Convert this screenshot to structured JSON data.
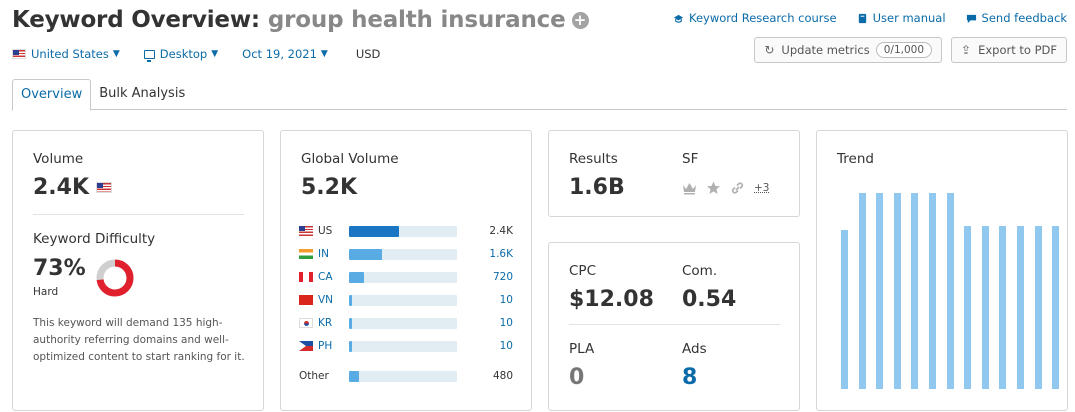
{
  "header": {
    "title": "Keyword Overview:",
    "keyword": "group health insurance",
    "links": [
      "Keyword Research course",
      "User manual",
      "Send feedback"
    ]
  },
  "filters": {
    "country": "United States",
    "device": "Desktop",
    "date": "Oct 19, 2021",
    "currency": "USD"
  },
  "buttons": {
    "update": "Update metrics",
    "update_count": "0/1,000",
    "export": "Export to PDF"
  },
  "tabs": [
    "Overview",
    "Bulk Analysis"
  ],
  "volume": {
    "label": "Volume",
    "value": "2.4K"
  },
  "kd": {
    "label": "Keyword Difficulty",
    "value": "73%",
    "level": "Hard",
    "percent": 73,
    "description": "This keyword will demand 135 high-authority referring domains and well-optimized content to start ranking for it."
  },
  "global_volume": {
    "label": "Global Volume",
    "value": "5.2K",
    "rows": [
      {
        "code": "US",
        "value": "2.4K",
        "share": 0.46,
        "linked": false
      },
      {
        "code": "IN",
        "value": "1.6K",
        "share": 0.31,
        "linked": true
      },
      {
        "code": "CA",
        "value": "720",
        "share": 0.14,
        "linked": true
      },
      {
        "code": "VN",
        "value": "10",
        "share": 0.02,
        "linked": true
      },
      {
        "code": "KR",
        "value": "10",
        "share": 0.02,
        "linked": true
      },
      {
        "code": "PH",
        "value": "10",
        "share": 0.02,
        "linked": true
      }
    ],
    "other": {
      "label": "Other",
      "value": "480",
      "share": 0.09
    }
  },
  "results": {
    "label": "Results",
    "value": "1.6B",
    "sf_label": "SF",
    "sf_more": "+3"
  },
  "cpc": {
    "label": "CPC",
    "value": "$12.08",
    "com_label": "Com.",
    "com_value": "0.54",
    "pla_label": "PLA",
    "pla_value": "0",
    "ads_label": "Ads",
    "ads_value": "8"
  },
  "trend": {
    "label": "Trend",
    "values": [
      0.81,
      1.0,
      1.0,
      1.0,
      1.0,
      1.0,
      1.0,
      0.83,
      0.83,
      0.83,
      0.83,
      0.83,
      0.83
    ]
  },
  "colors": {
    "link": "#0b6ba8",
    "bar": "#59abe3",
    "trend": "#91c8ef",
    "kd": "#e0202c"
  }
}
